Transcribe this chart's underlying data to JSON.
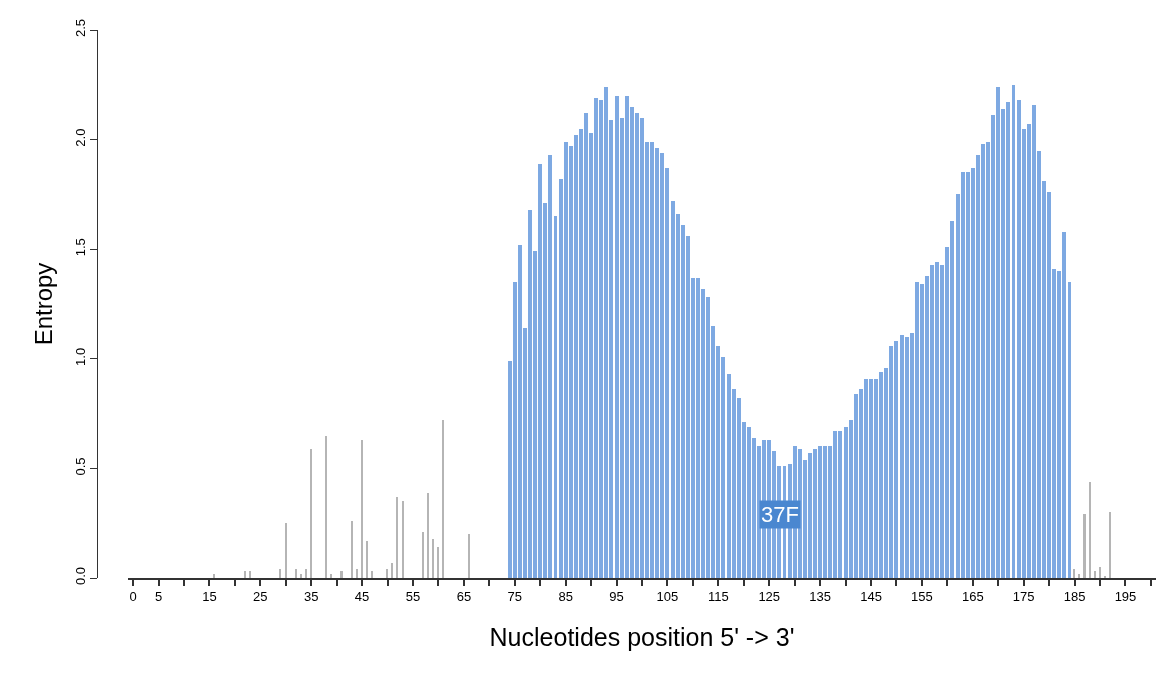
{
  "chart_data": {
    "type": "bar",
    "xlabel": "Nucleotides position 5' -> 3'",
    "ylabel": "Entropy",
    "annotations": [
      "37F"
    ],
    "series": [
      {
        "color": "#b5b5b5",
        "x": [
          16,
          22,
          23,
          29,
          30,
          32,
          33,
          34,
          35,
          38,
          39,
          41,
          43,
          44,
          45,
          46,
          47,
          50,
          51,
          52,
          53,
          57,
          58,
          59,
          60,
          61,
          66,
          185,
          186,
          187,
          188,
          189,
          190,
          191,
          192
        ],
        "values": [
          0.02,
          0.03,
          0.03,
          0.04,
          0.25,
          0.04,
          0.02,
          0.04,
          0.59,
          0.65,
          0.02,
          0.03,
          0.26,
          0.04,
          0.63,
          0.17,
          0.03,
          0.04,
          0.07,
          0.37,
          0.35,
          0.21,
          0.39,
          0.18,
          0.14,
          0.72,
          0.2,
          0.04,
          0.02,
          0.29,
          0.44,
          0.03,
          0.05,
          0.01,
          0.3
        ]
      },
      {
        "color": "#7ea9e2",
        "x": [
          74,
          75,
          76,
          77,
          78,
          79,
          80,
          81,
          82,
          83,
          84,
          85,
          86,
          87,
          88,
          89,
          90,
          91,
          92,
          93,
          94,
          95,
          96,
          97,
          98,
          99,
          100,
          101,
          102,
          103,
          104,
          105,
          106,
          107,
          108,
          109,
          110,
          111,
          112,
          113,
          114,
          115,
          116,
          117,
          118,
          119,
          120,
          121,
          122,
          123,
          124,
          125,
          126,
          127,
          128,
          129,
          130,
          131,
          132,
          133,
          134,
          135,
          136,
          137,
          138,
          139,
          140,
          141,
          142,
          143,
          144,
          145,
          146,
          147,
          148,
          149,
          150,
          151,
          152,
          153,
          154,
          155,
          156,
          157,
          158,
          159,
          160,
          161,
          162,
          163,
          164,
          165,
          166,
          167,
          168,
          169,
          170,
          171,
          172,
          173,
          174,
          175,
          176,
          177,
          178,
          179,
          180,
          181,
          182,
          183,
          184
        ],
        "values": [
          0.99,
          1.35,
          1.52,
          1.14,
          1.68,
          1.49,
          1.89,
          1.71,
          1.93,
          1.65,
          1.82,
          1.99,
          1.97,
          2.02,
          2.05,
          2.12,
          2.03,
          2.19,
          2.18,
          2.24,
          2.09,
          2.2,
          2.1,
          2.2,
          2.15,
          2.12,
          2.1,
          1.99,
          1.99,
          1.96,
          1.94,
          1.87,
          1.72,
          1.66,
          1.61,
          1.56,
          1.37,
          1.37,
          1.32,
          1.28,
          1.15,
          1.06,
          1.01,
          0.93,
          0.86,
          0.82,
          0.71,
          0.69,
          0.64,
          0.6,
          0.63,
          0.63,
          0.58,
          0.51,
          0.51,
          0.52,
          0.6,
          0.59,
          0.54,
          0.57,
          0.59,
          0.6,
          0.6,
          0.6,
          0.67,
          0.67,
          0.69,
          0.72,
          0.84,
          0.86,
          0.91,
          0.91,
          0.91,
          0.94,
          0.96,
          1.06,
          1.08,
          1.11,
          1.1,
          1.12,
          1.35,
          1.34,
          1.38,
          1.43,
          1.44,
          1.43,
          1.51,
          1.63,
          1.75,
          1.85,
          1.85,
          1.87,
          1.93,
          1.98,
          1.99,
          2.11,
          2.24,
          2.14,
          2.17,
          2.25,
          2.18,
          2.05,
          2.07,
          2.16,
          1.95,
          1.81,
          1.76,
          1.41,
          1.4,
          1.58,
          1.35
        ]
      }
    ],
    "xlim": [
      -1,
      201
    ],
    "yticks": [
      {
        "value": 0,
        "label": "0.0"
      },
      {
        "value": 0.5,
        "label": "0.5"
      },
      {
        "value": 1,
        "label": "1.0"
      },
      {
        "value": 1.5,
        "label": "1.5"
      },
      {
        "value": 2,
        "label": "2.0"
      },
      {
        "value": 2.5,
        "label": "2.5"
      }
    ],
    "xticks": [
      0,
      5,
      {
        "value": 10,
        "label": null
      },
      15,
      {
        "value": 20,
        "label": null
      },
      25,
      {
        "value": 30,
        "label": null
      },
      35,
      {
        "value": 40,
        "label": null
      },
      45,
      {
        "value": 50,
        "label": null
      },
      55,
      {
        "value": 60,
        "label": null
      },
      65,
      {
        "value": 70,
        "label": null
      },
      75,
      {
        "value": 80,
        "label": null
      },
      85,
      {
        "value": 90,
        "label": null
      },
      95,
      {
        "value": 100,
        "label": null
      },
      105,
      {
        "value": 110,
        "label": null
      },
      115,
      {
        "value": 120,
        "label": null
      },
      125,
      {
        "value": 130,
        "label": null
      },
      135,
      {
        "value": 140,
        "label": null
      },
      145,
      {
        "value": 150,
        "label": null
      },
      155,
      {
        "value": 160,
        "label": null
      },
      165,
      {
        "value": 170,
        "label": null
      },
      175,
      {
        "value": 180,
        "label": null
      },
      185,
      {
        "value": 190,
        "label": null
      },
      195,
      {
        "value": 200,
        "label": null
      }
    ],
    "ylim": [
      0,
      2.5
    ]
  }
}
